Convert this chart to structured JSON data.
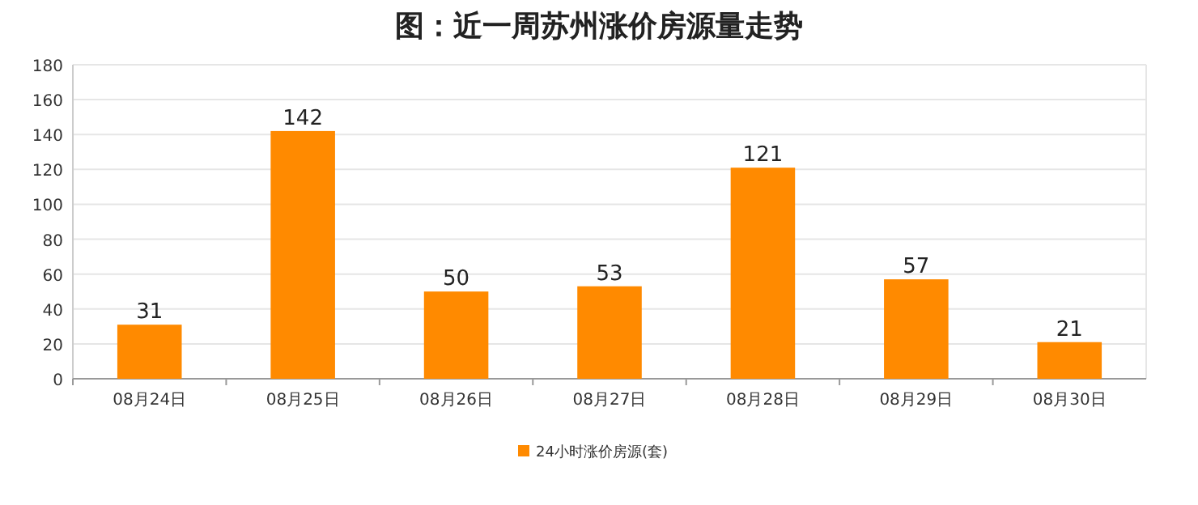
{
  "chart_data": {
    "type": "bar",
    "title": "图：近一周苏州涨价房源量走势",
    "categories": [
      "08月24日",
      "08月25日",
      "08月26日",
      "08月27日",
      "08月28日",
      "08月29日",
      "08月30日"
    ],
    "series": [
      {
        "name": "24小时涨价房源(套)",
        "color": "#ff8a00",
        "values": [
          31,
          142,
          50,
          53,
          121,
          57,
          21
        ]
      }
    ],
    "ylim": [
      0,
      180
    ],
    "yticks": [
      0,
      20,
      40,
      60,
      80,
      100,
      120,
      140,
      160,
      180
    ],
    "grid": "y",
    "legend": "bottom",
    "data_labels": true
  }
}
